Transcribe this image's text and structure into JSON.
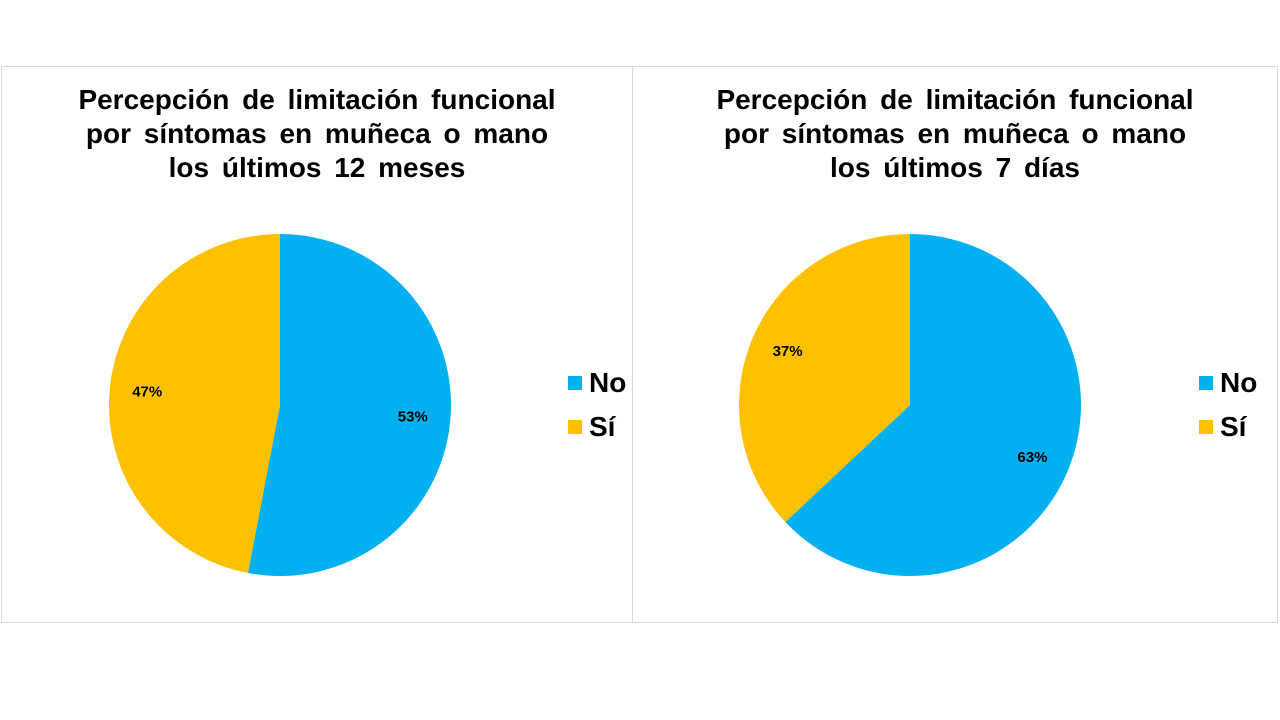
{
  "chart_data": [
    {
      "type": "pie",
      "title_lines": [
        "Percepción de limitación funcional",
        "por síntomas en muñeca o mano",
        "los últimos 12 meses"
      ],
      "categories": [
        "No",
        "Sí"
      ],
      "values": [
        53,
        47
      ],
      "data_labels": [
        "53%",
        "47%"
      ],
      "colors": [
        "#00B0F0",
        "#FFC000"
      ],
      "legend_position": "right"
    },
    {
      "type": "pie",
      "title_lines": [
        "Percepción de limitación funcional",
        "por síntomas en muñeca o mano",
        "los últimos 7 días"
      ],
      "categories": [
        "No",
        "Sí"
      ],
      "values": [
        63,
        37
      ],
      "data_labels": [
        "63%",
        "37%"
      ],
      "colors": [
        "#00B0F0",
        "#FFC000"
      ],
      "legend_position": "right"
    }
  ]
}
